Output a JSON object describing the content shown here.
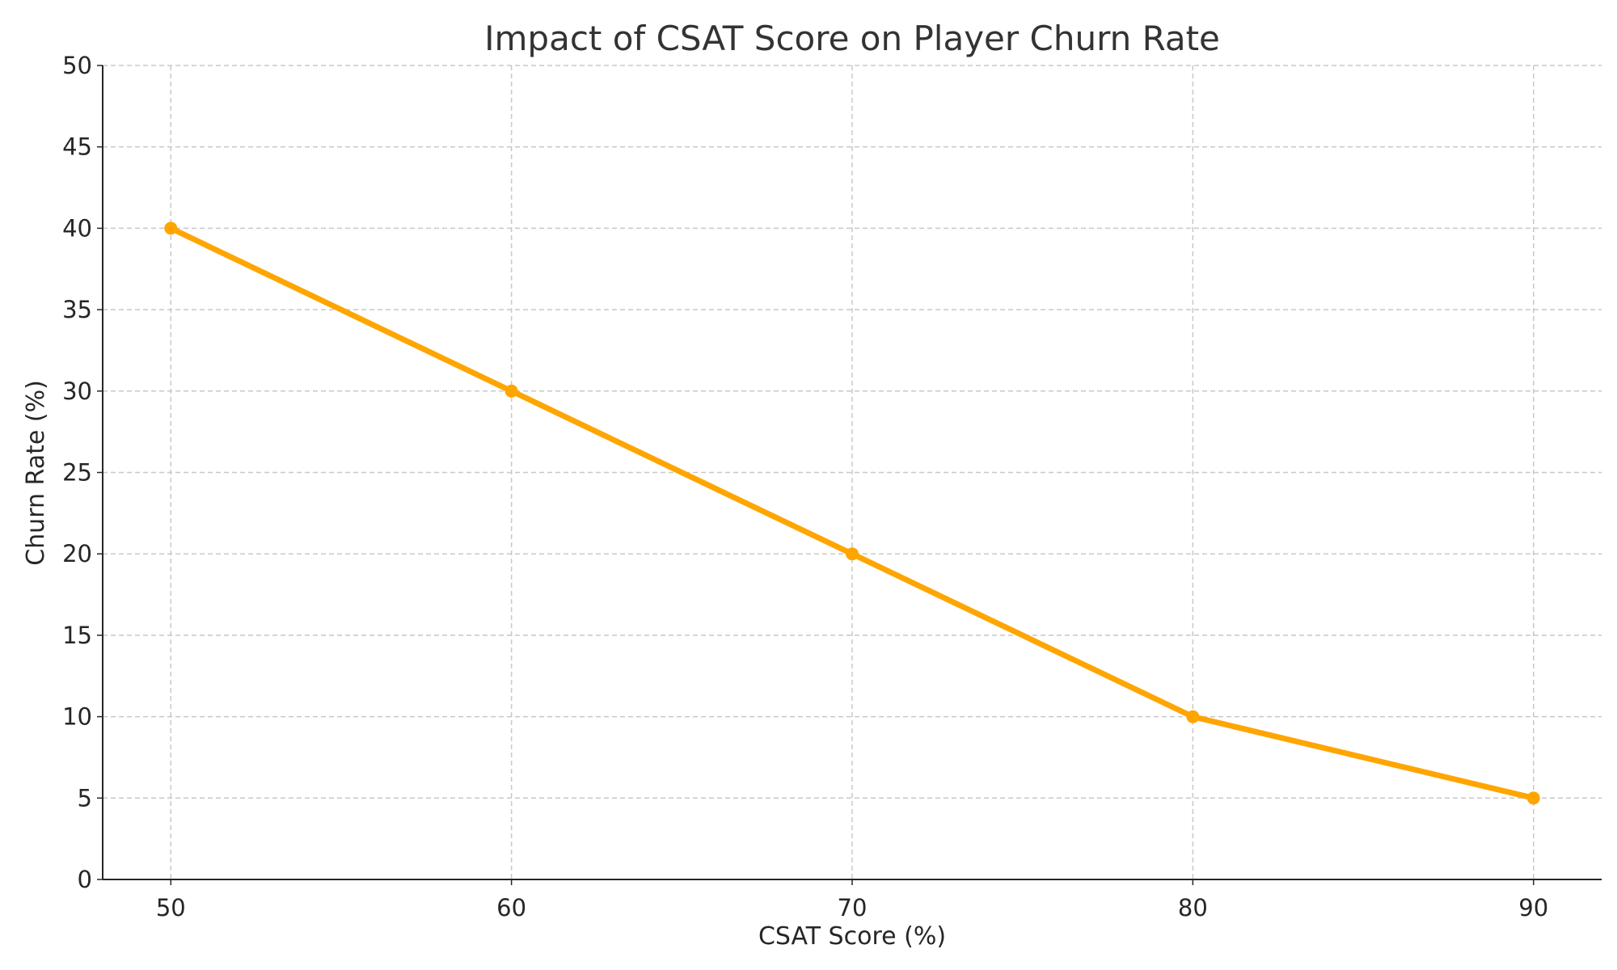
{
  "chart_data": {
    "type": "line",
    "title": "Impact of CSAT Score on Player Churn Rate",
    "xlabel": "CSAT Score (%)",
    "ylabel": "Churn Rate (%)",
    "x": [
      50,
      60,
      70,
      80,
      90
    ],
    "series": [
      {
        "values": [
          40,
          30,
          20,
          10,
          5
        ],
        "color": "#FFA500",
        "marker": "circle"
      }
    ],
    "xlim": [
      48,
      92
    ],
    "ylim": [
      0,
      50
    ],
    "xticks": [
      "50",
      "60",
      "70",
      "80",
      "90"
    ],
    "yticks": [
      "0",
      "5",
      "10",
      "15",
      "20",
      "25",
      "30",
      "35",
      "40",
      "45",
      "50"
    ],
    "grid": true,
    "grid_style": "dashed",
    "legend": "none"
  }
}
